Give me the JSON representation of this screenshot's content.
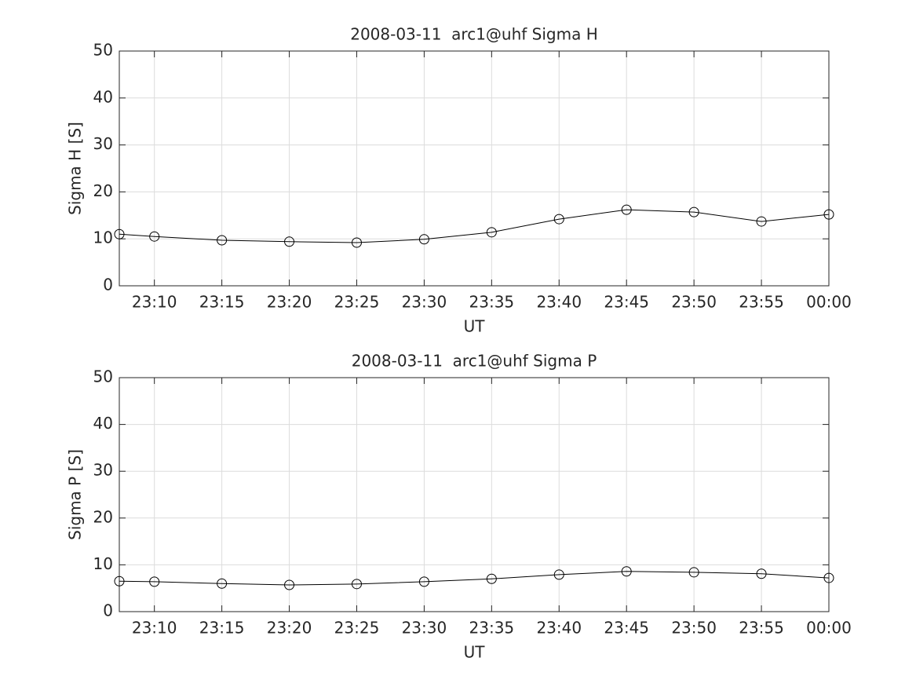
{
  "chart_data": [
    {
      "type": "line",
      "title": "2008-03-11  arc1@uhf Sigma H",
      "xlabel": "UT",
      "ylabel": "Sigma H [S]",
      "x": [
        1387.4,
        1390,
        1395,
        1400,
        1405,
        1410,
        1415,
        1420,
        1425,
        1430,
        1435,
        1440
      ],
      "series": [
        {
          "name": "Sigma H",
          "color": "#000000",
          "values": [
            11.0,
            10.5,
            9.7,
            9.4,
            9.2,
            9.9,
            11.4,
            14.2,
            16.2,
            15.7,
            13.7,
            15.2
          ]
        }
      ],
      "xlim": [
        1387.4,
        1440
      ],
      "xticks": [
        {
          "value": 1390,
          "label": "23:10"
        },
        {
          "value": 1395,
          "label": "23:15"
        },
        {
          "value": 1400,
          "label": "23:20"
        },
        {
          "value": 1405,
          "label": "23:25"
        },
        {
          "value": 1410,
          "label": "23:30"
        },
        {
          "value": 1415,
          "label": "23:35"
        },
        {
          "value": 1420,
          "label": "23:40"
        },
        {
          "value": 1425,
          "label": "23:45"
        },
        {
          "value": 1430,
          "label": "23:50"
        },
        {
          "value": 1435,
          "label": "23:55"
        },
        {
          "value": 1440,
          "label": "00:00"
        }
      ],
      "ylim": [
        0,
        50
      ],
      "yticks": [
        0,
        10,
        20,
        30,
        40,
        50
      ],
      "grid": true,
      "marker": "circle"
    },
    {
      "type": "line",
      "title": "2008-03-11  arc1@uhf Sigma P",
      "xlabel": "UT",
      "ylabel": "Sigma P [S]",
      "x": [
        1387.4,
        1390,
        1395,
        1400,
        1405,
        1410,
        1415,
        1420,
        1425,
        1430,
        1435,
        1440
      ],
      "series": [
        {
          "name": "Sigma P",
          "color": "#000000",
          "values": [
            6.5,
            6.4,
            6.0,
            5.7,
            5.9,
            6.4,
            7.0,
            7.9,
            8.6,
            8.4,
            8.1,
            7.2
          ]
        }
      ],
      "xlim": [
        1387.4,
        1440
      ],
      "xticks": [
        {
          "value": 1390,
          "label": "23:10"
        },
        {
          "value": 1395,
          "label": "23:15"
        },
        {
          "value": 1400,
          "label": "23:20"
        },
        {
          "value": 1405,
          "label": "23:25"
        },
        {
          "value": 1410,
          "label": "23:30"
        },
        {
          "value": 1415,
          "label": "23:35"
        },
        {
          "value": 1420,
          "label": "23:40"
        },
        {
          "value": 1425,
          "label": "23:45"
        },
        {
          "value": 1430,
          "label": "23:50"
        },
        {
          "value": 1435,
          "label": "23:55"
        },
        {
          "value": 1440,
          "label": "00:00"
        }
      ],
      "ylim": [
        0,
        50
      ],
      "yticks": [
        0,
        10,
        20,
        30,
        40,
        50
      ],
      "grid": true,
      "marker": "circle"
    }
  ]
}
